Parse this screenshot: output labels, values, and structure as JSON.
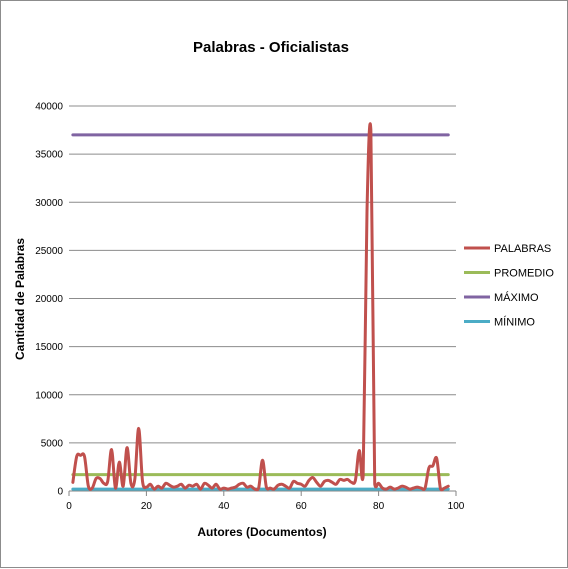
{
  "chart_data": {
    "type": "line",
    "title": "Palabras - Oficialistas",
    "xlabel": "Autores (Documentos)",
    "ylabel": "Cantidad de Palabras",
    "xlim": [
      0,
      100
    ],
    "ylim": [
      0,
      40000
    ],
    "x_ticks": [
      "0",
      "20",
      "40",
      "60",
      "80",
      "100"
    ],
    "y_ticks": [
      "0",
      "5000",
      "10000",
      "15000",
      "20000",
      "25000",
      "30000",
      "35000",
      "40000"
    ],
    "grid": true,
    "legend_position": "right",
    "series": [
      {
        "name": "PALABRAS",
        "color": "#c0504d",
        "x": [
          1,
          2,
          3,
          4,
          5,
          6,
          7,
          8,
          9,
          10,
          11,
          12,
          13,
          14,
          15,
          16,
          17,
          18,
          19,
          20,
          21,
          22,
          23,
          24,
          25,
          26,
          27,
          28,
          29,
          30,
          31,
          32,
          33,
          34,
          35,
          36,
          37,
          38,
          39,
          40,
          41,
          42,
          43,
          44,
          45,
          46,
          47,
          48,
          49,
          50,
          51,
          52,
          53,
          54,
          55,
          56,
          57,
          58,
          59,
          60,
          61,
          62,
          63,
          64,
          65,
          66,
          67,
          68,
          69,
          70,
          71,
          72,
          73,
          74,
          75,
          76,
          77,
          78,
          79,
          80,
          81,
          82,
          83,
          84,
          85,
          86,
          87,
          88,
          89,
          90,
          91,
          92,
          93,
          94,
          95,
          96,
          97,
          98
        ],
        "values": [
          900,
          3600,
          3700,
          3600,
          500,
          300,
          1300,
          1300,
          800,
          1000,
          4300,
          300,
          3000,
          500,
          4500,
          800,
          1200,
          6500,
          1000,
          400,
          700,
          200,
          500,
          300,
          800,
          600,
          400,
          500,
          700,
          300,
          600,
          500,
          700,
          200,
          800,
          600,
          300,
          700,
          200,
          300,
          200,
          300,
          400,
          700,
          800,
          400,
          500,
          200,
          300,
          3200,
          400,
          300,
          200,
          600,
          700,
          500,
          300,
          1000,
          800,
          700,
          500,
          1100,
          1400,
          900,
          500,
          1000,
          1100,
          900,
          700,
          1200,
          1100,
          1200,
          900,
          1100,
          4200,
          1500,
          29000,
          37500,
          700,
          800,
          300,
          200,
          400,
          200,
          300,
          500,
          400,
          200,
          300,
          400,
          300,
          300,
          2400,
          2600,
          3400,
          200,
          300,
          500
        ]
      },
      {
        "name": "PROMEDIO",
        "color": "#9bbb59",
        "x": [
          1,
          98
        ],
        "values": [
          1700,
          1700
        ]
      },
      {
        "name": "MÁXIMO",
        "color": "#8064a2",
        "x": [
          1,
          98
        ],
        "values": [
          37000,
          37000
        ]
      },
      {
        "name": "MÍNIMO",
        "color": "#4bacc6",
        "x": [
          1,
          98
        ],
        "values": [
          200,
          200
        ]
      }
    ]
  }
}
